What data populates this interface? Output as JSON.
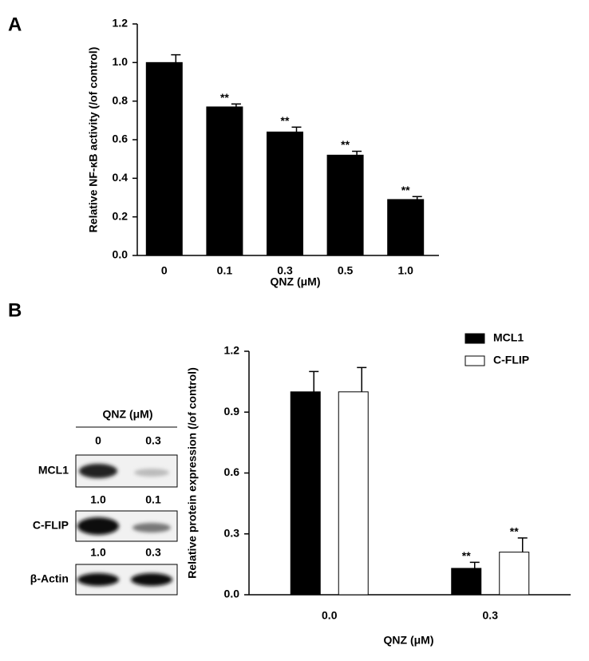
{
  "panels": [
    {
      "label": "A"
    },
    {
      "label": "B"
    }
  ],
  "blot": {
    "header": "QNZ (μM)",
    "lanes": [
      "0",
      "0.3"
    ],
    "rows": [
      {
        "label": "MCL1",
        "quant": [
          "1.0",
          "0.1"
        ]
      },
      {
        "label": "C-FLIP",
        "quant": [
          "1.0",
          "0.3"
        ]
      },
      {
        "label": "β-Actin"
      }
    ]
  },
  "chart_data": [
    {
      "type": "bar",
      "ylabel": "Relative NF-κB activity (/of control)",
      "xlabel": "QNZ (μM)",
      "categories": [
        "0",
        "0.1",
        "0.3",
        "0.5",
        "1.0"
      ],
      "values": [
        1.0,
        0.77,
        0.64,
        0.52,
        0.29
      ],
      "errors": [
        0.04,
        0.015,
        0.025,
        0.02,
        0.015
      ],
      "significance": [
        null,
        "**",
        "**",
        "**",
        "**"
      ],
      "color": "#000000",
      "ylim": [
        0,
        1.2
      ],
      "yticks": [
        {
          "value": 0,
          "label": "0.0"
        },
        0.2,
        0.4,
        0.6,
        0.8,
        {
          "value": 1,
          "label": "1.0"
        },
        1.2
      ]
    },
    {
      "type": "grouped-bar",
      "ylabel": "Relative protein expression (/of control)",
      "xlabel": "QNZ (μM)",
      "categories": [
        "0.0",
        "0.3"
      ],
      "series": [
        {
          "name": "MCL1",
          "color": "#000000",
          "values": [
            1.0,
            0.13
          ],
          "errors": [
            0.1,
            0.03
          ],
          "significance": [
            null,
            "**"
          ]
        },
        {
          "name": "C-FLIP",
          "color": "#ffffff",
          "values": [
            1.0,
            0.21
          ],
          "errors": [
            0.12,
            0.07
          ],
          "significance": [
            null,
            "**"
          ]
        }
      ],
      "ylim": [
        0,
        1.2
      ],
      "yticks": [
        {
          "value": 0,
          "label": "0.0"
        },
        0.3,
        0.6,
        0.9,
        1.2
      ],
      "legend": "top-right"
    }
  ]
}
